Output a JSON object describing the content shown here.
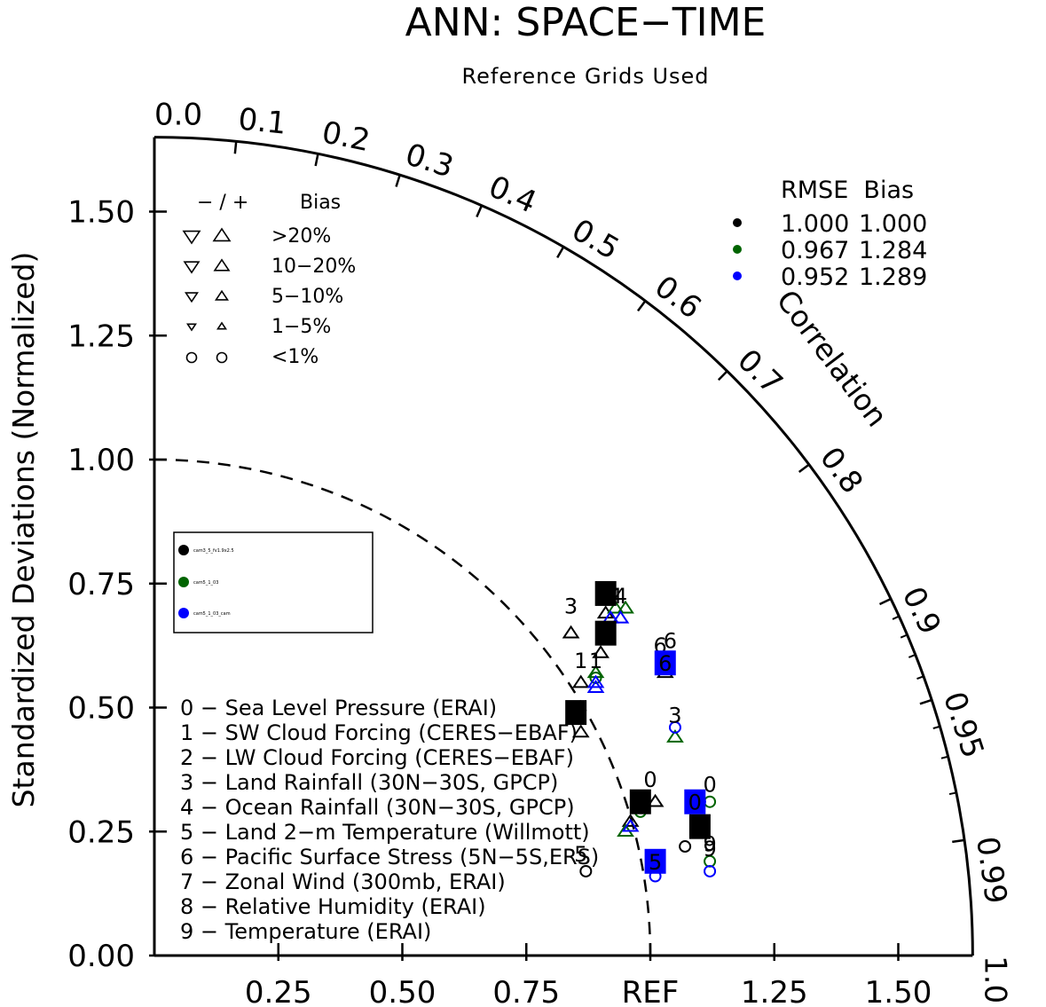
{
  "title": "ANN: SPACE−TIME",
  "subtitle": "Reference Grids Used",
  "colors": {
    "case1": "#000000",
    "case2": "#006400",
    "case3": "#0000ff"
  },
  "chart_data": {
    "type": "taylor",
    "title": "ANN: SPACE−TIME",
    "subtitle": "Reference Grids Used",
    "ylabel": "Standardized Deviations (Normalized)",
    "correlation_label": "Correlation",
    "std_range": [
      0,
      1.65
    ],
    "y_ticks": [
      "0.00",
      "0.25",
      "0.50",
      "0.75",
      "1.00",
      "1.25",
      "1.50"
    ],
    "x_ticks": [
      "0.25",
      "0.50",
      "0.75",
      "REF",
      "1.25",
      "1.50"
    ],
    "corr_ticks": [
      "0.0",
      "0.1",
      "0.2",
      "0.3",
      "0.4",
      "0.5",
      "0.6",
      "0.7",
      "0.8",
      "0.9",
      "0.95",
      "0.99",
      "1.0"
    ],
    "bias_legend": {
      "header_sign": "− / +",
      "header_bias": "Bias",
      "rows": [
        ">20%",
        "10−20%",
        "5−10%",
        "1−5%",
        "<1%"
      ]
    },
    "summary": {
      "header": "RMSE  Bias",
      "rows": [
        {
          "color": "#000000",
          "rmse": "1.000",
          "bias": "1.000"
        },
        {
          "color": "#006400",
          "rmse": "0.967",
          "bias": "1.284"
        },
        {
          "color": "#0000ff",
          "rmse": "0.952",
          "bias": "1.289"
        }
      ]
    },
    "cases": [
      {
        "name": "cam3_5_fv1.9x2.5",
        "color": "#000000"
      },
      {
        "name": "cam5_1_03",
        "color": "#006400"
      },
      {
        "name": "cam5_1_03_cam",
        "color": "#0000ff"
      }
    ],
    "variables": [
      "0 − Sea Level Pressure (ERAI)",
      "1 − SW Cloud Forcing (CERES−EBAF)",
      "2 − LW Cloud Forcing (CERES−EBAF)",
      "3 − Land Rainfall (30N−30S, GPCP)",
      "4 − Ocean Rainfall (30N−30S, GPCP)",
      "5 − Land 2−m Temperature (Willmott)",
      "6 − Pacific Surface Stress (5N−5S,ERS)",
      "7 − Zonal Wind (300mb, ERAI)",
      "8 − Relative Humidity (ERAI)",
      "9 − Temperature (ERAI)"
    ],
    "points": [
      {
        "case": 0,
        "var": 0,
        "x": 1.01,
        "y": 0.31,
        "shape": "tri-up"
      },
      {
        "case": 0,
        "var": 1,
        "x": 0.86,
        "y": 0.55,
        "shape": "tri-up"
      },
      {
        "case": 0,
        "var": 2,
        "x": 0.9,
        "y": 0.61,
        "shape": "tri-up"
      },
      {
        "case": 0,
        "var": 3,
        "x": 0.84,
        "y": 0.65,
        "shape": "tri-up"
      },
      {
        "case": 0,
        "var": 4,
        "x": 0.91,
        "y": 0.69,
        "shape": "tri-up"
      },
      {
        "case": 0,
        "var": 5,
        "x": 0.87,
        "y": 0.17,
        "shape": "circle"
      },
      {
        "case": 0,
        "var": 6,
        "x": 1.03,
        "y": 0.57,
        "shape": "tri-up"
      },
      {
        "case": 0,
        "var": 7,
        "x": 0.96,
        "y": 0.27,
        "shape": "tri-up"
      },
      {
        "case": 0,
        "var": 8,
        "x": 0.86,
        "y": 0.45,
        "shape": "tri-up"
      },
      {
        "case": 0,
        "var": 9,
        "x": 1.07,
        "y": 0.22,
        "shape": "circle"
      },
      {
        "case": 1,
        "var": 0,
        "x": 1.12,
        "y": 0.31,
        "shape": "circle"
      },
      {
        "case": 1,
        "var": 1,
        "x": 0.89,
        "y": 0.57,
        "shape": "tri-up"
      },
      {
        "case": 1,
        "var": 2,
        "x": 0.93,
        "y": 0.7,
        "shape": "tri-up"
      },
      {
        "case": 1,
        "var": 3,
        "x": 1.05,
        "y": 0.44,
        "shape": "tri-up"
      },
      {
        "case": 1,
        "var": 4,
        "x": 0.95,
        "y": 0.7,
        "shape": "tri-up"
      },
      {
        "case": 1,
        "var": 5,
        "x": 0.95,
        "y": 0.25,
        "shape": "tri-up"
      },
      {
        "case": 1,
        "var": 6,
        "x": 1.03,
        "y": 0.6,
        "shape": "circle"
      },
      {
        "case": 1,
        "var": 7,
        "x": 0.98,
        "y": 0.29,
        "shape": "circle"
      },
      {
        "case": 1,
        "var": 8,
        "x": 0.89,
        "y": 0.56,
        "shape": "circle"
      },
      {
        "case": 1,
        "var": 9,
        "x": 1.12,
        "y": 0.19,
        "shape": "circle"
      },
      {
        "case": 2,
        "var": 0,
        "x": 1.1,
        "y": 0.31,
        "shape": "circle"
      },
      {
        "case": 2,
        "var": 1,
        "x": 0.89,
        "y": 0.55,
        "shape": "tri-up"
      },
      {
        "case": 2,
        "var": 2,
        "x": 0.94,
        "y": 0.68,
        "shape": "tri-up"
      },
      {
        "case": 2,
        "var": 3,
        "x": 1.05,
        "y": 0.46,
        "shape": "circle"
      },
      {
        "case": 2,
        "var": 4,
        "x": 0.92,
        "y": 0.68,
        "shape": "tri-up"
      },
      {
        "case": 2,
        "var": 5,
        "x": 1.01,
        "y": 0.16,
        "shape": "circle"
      },
      {
        "case": 2,
        "var": 6,
        "x": 1.03,
        "y": 0.58,
        "shape": "tri-up"
      },
      {
        "case": 2,
        "var": 7,
        "x": 0.96,
        "y": 0.26,
        "shape": "tri-up"
      },
      {
        "case": 2,
        "var": 8,
        "x": 0.89,
        "y": 0.54,
        "shape": "tri-up"
      },
      {
        "case": 2,
        "var": 9,
        "x": 1.12,
        "y": 0.17,
        "shape": "circle"
      }
    ],
    "label_boxes": [
      {
        "case": 0,
        "label": "4",
        "x": 0.91,
        "y": 0.73
      },
      {
        "case": 0,
        "label": "2",
        "x": 0.91,
        "y": 0.65
      },
      {
        "case": 0,
        "label": "8",
        "x": 0.85,
        "y": 0.49
      },
      {
        "case": 0,
        "label": "7",
        "x": 0.98,
        "y": 0.31
      },
      {
        "case": 0,
        "label": "9",
        "x": 1.1,
        "y": 0.26
      },
      {
        "case": 2,
        "label": "0",
        "x": 1.09,
        "y": 0.31
      },
      {
        "case": 2,
        "label": "5",
        "x": 1.01,
        "y": 0.19
      },
      {
        "case": 2,
        "label": "6",
        "x": 1.03,
        "y": 0.59
      }
    ],
    "plain_labels": [
      {
        "case": 0,
        "label": "3",
        "x": 0.84,
        "y": 0.69
      },
      {
        "case": 0,
        "label": "1",
        "x": 0.86,
        "y": 0.58
      },
      {
        "case": 0,
        "label": "5",
        "x": 0.86,
        "y": 0.19
      },
      {
        "case": 0,
        "label": "0",
        "x": 1.0,
        "y": 0.34
      },
      {
        "case": 0,
        "label": "6",
        "x": 1.02,
        "y": 0.61
      },
      {
        "case": 1,
        "label": "1",
        "x": 0.89,
        "y": 0.58
      },
      {
        "case": 1,
        "label": "4",
        "x": 0.93,
        "y": 0.71
      },
      {
        "case": 1,
        "label": "0",
        "x": 1.12,
        "y": 0.33
      },
      {
        "case": 1,
        "label": "3",
        "x": 1.05,
        "y": 0.47
      },
      {
        "case": 1,
        "label": "9",
        "x": 1.12,
        "y": 0.21
      },
      {
        "case": 1,
        "label": "6",
        "x": 1.04,
        "y": 0.62
      },
      {
        "case": 2,
        "label": "4",
        "x": 0.94,
        "y": 0.71
      },
      {
        "case": 2,
        "label": "9",
        "x": 1.12,
        "y": 0.2
      }
    ]
  }
}
